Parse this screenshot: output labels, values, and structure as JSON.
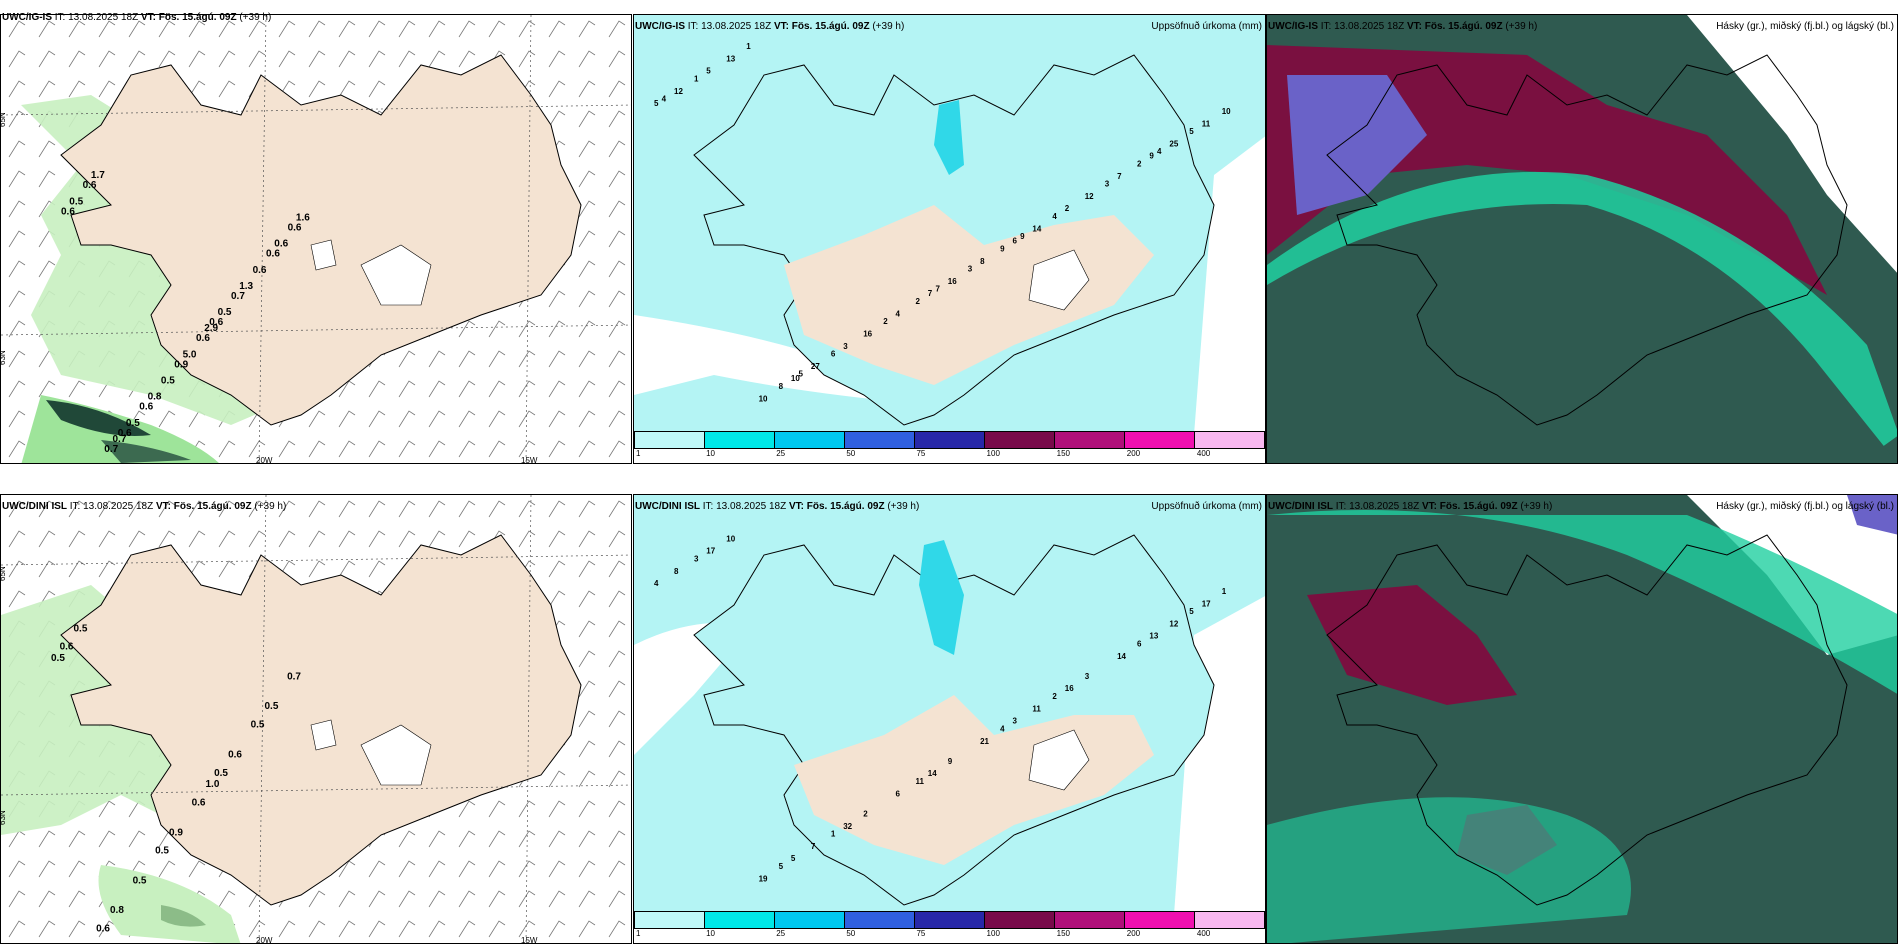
{
  "rows": [
    {
      "model": "UWC/IG-IS",
      "it": "IT: 13.08.2025 18Z",
      "vt_bold": "VT: Fös. 15.ágú. 09Z",
      "lead": "(+39 h)",
      "wind_labels": [
        "0.6",
        "0.6",
        "0.6",
        "0.6",
        "0.9",
        "0.6",
        "0.7",
        "0.6",
        "0.6",
        "0.6",
        "0.7",
        "0.6",
        "0.5",
        "0.5",
        "0.5",
        "0.5",
        "0.6",
        "5.0",
        "1.7",
        "1.3",
        "0.8",
        "1.6",
        "2.9",
        "0.7"
      ],
      "precip_labels": [
        "5",
        "6",
        "10",
        "9",
        "7",
        "5",
        "2",
        "3",
        "11",
        "8",
        "10",
        "7",
        "4",
        "12",
        "14",
        "27",
        "25",
        "16",
        "13",
        "12",
        "16",
        "10",
        "9",
        "8",
        "2",
        "2",
        "1",
        "4",
        "6",
        "5",
        "3",
        "1",
        "3",
        "2",
        "4",
        "9",
        "5",
        "4",
        "7"
      ]
    },
    {
      "model": "UWC/DINI ISL",
      "it": "IT: 13.08.2025 18Z",
      "vt_bold": "VT: Fös. 15.ágú. 09Z",
      "lead": "(+39 h)",
      "wind_labels": [
        "0.5",
        "1.0",
        "0.8",
        "0.5",
        "0.9",
        "0.5",
        "0.6",
        "0.5",
        "0.7",
        "0.6",
        "0.6",
        "0.5",
        "0.5",
        "0.6",
        "0.5"
      ],
      "precip_labels": [
        "4",
        "3",
        "5",
        "13",
        "14",
        "17",
        "16",
        "32",
        "17",
        "21",
        "19",
        "14",
        "6",
        "8",
        "11",
        "7",
        "12",
        "9",
        "10",
        "3",
        "2",
        "1",
        "4",
        "5",
        "6",
        "11",
        "3",
        "2",
        "1",
        "5"
      ]
    }
  ],
  "precip_title": "Uppsöfnuð úrkoma (mm)",
  "cloud_title": "Hásky (gr.), miðský (fj.bl.) og lágský (bl.)",
  "lat_labels": [
    "65N",
    "64N",
    "66N",
    "63N"
  ],
  "lon_labels": [
    "20W",
    "15W"
  ],
  "colorbar": {
    "labels": [
      "1",
      "10",
      "25",
      "50",
      "75",
      "100",
      "150",
      "200",
      "400"
    ],
    "colors": [
      "#bff8f8",
      "#00e8e8",
      "#00c8f0",
      "#3060e0",
      "#2828a8",
      "#780a4a",
      "#b0107a",
      "#f010b0",
      "#f8b8f0"
    ]
  },
  "colors": {
    "land": "#f4e3d2",
    "sea_precip": "#b4f4f4",
    "wind_green": "#c8f0c0",
    "wind_dark": "#204838",
    "cloud_low": "#2f5a50",
    "cloud_mid": "#6a62c8",
    "cloud_high": "#7a1040",
    "cloud_edge": "#20d0a0"
  }
}
